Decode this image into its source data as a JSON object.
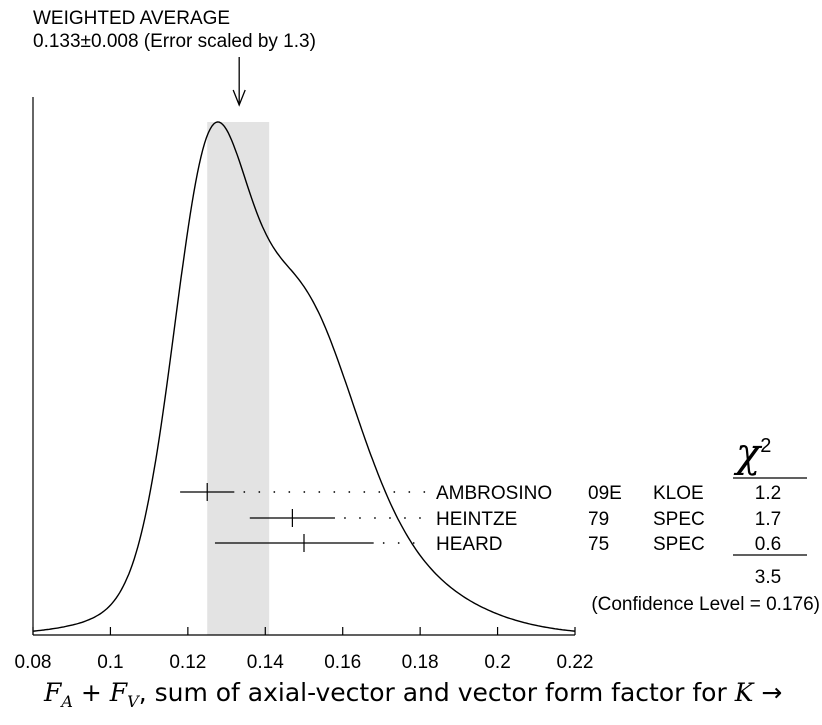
{
  "header": {
    "line1": "WEIGHTED AVERAGE",
    "line2": "0.133±0.008 (Error scaled by 1.3)"
  },
  "chart_data": {
    "type": "ideogram",
    "xlim": [
      0.08,
      0.22
    ],
    "x_ticks": [
      "0.08",
      "0.1",
      "0.12",
      "0.14",
      "0.16",
      "0.18",
      "0.2",
      "0.22"
    ],
    "average": {
      "value": 0.133,
      "error": 0.008,
      "scale_factor": 1.3,
      "band": [
        0.125,
        0.141
      ]
    },
    "measurements": [
      {
        "author": "AMBROSINO",
        "year": "09E",
        "tecn": "KLOE",
        "value": 0.125,
        "err_low": 0.007,
        "err_high": 0.007,
        "chi2": "1.2"
      },
      {
        "author": "HEINTZE",
        "year": "79",
        "tecn": "SPEC",
        "value": 0.147,
        "err_low": 0.011,
        "err_high": 0.011,
        "chi2": "1.7"
      },
      {
        "author": "HEARD",
        "year": "75",
        "tecn": "SPEC",
        "value": 0.15,
        "err_low": 0.023,
        "err_high": 0.018,
        "chi2": "0.6"
      }
    ],
    "chi2_total": "3.5",
    "confidence_label": "(Confidence Level = 0.176)",
    "xlabel_text": ", sum of axial-vector and vector form factor for ",
    "xlabel_fa": "F",
    "xlabel_fa_sub": "A",
    "xlabel_plus": " + ",
    "xlabel_fv": "F",
    "xlabel_fv_sub": "V",
    "xlabel_k": "K",
    "xlabel_arrow": " →",
    "chi_symbol": "χ",
    "chi_power": "2"
  }
}
